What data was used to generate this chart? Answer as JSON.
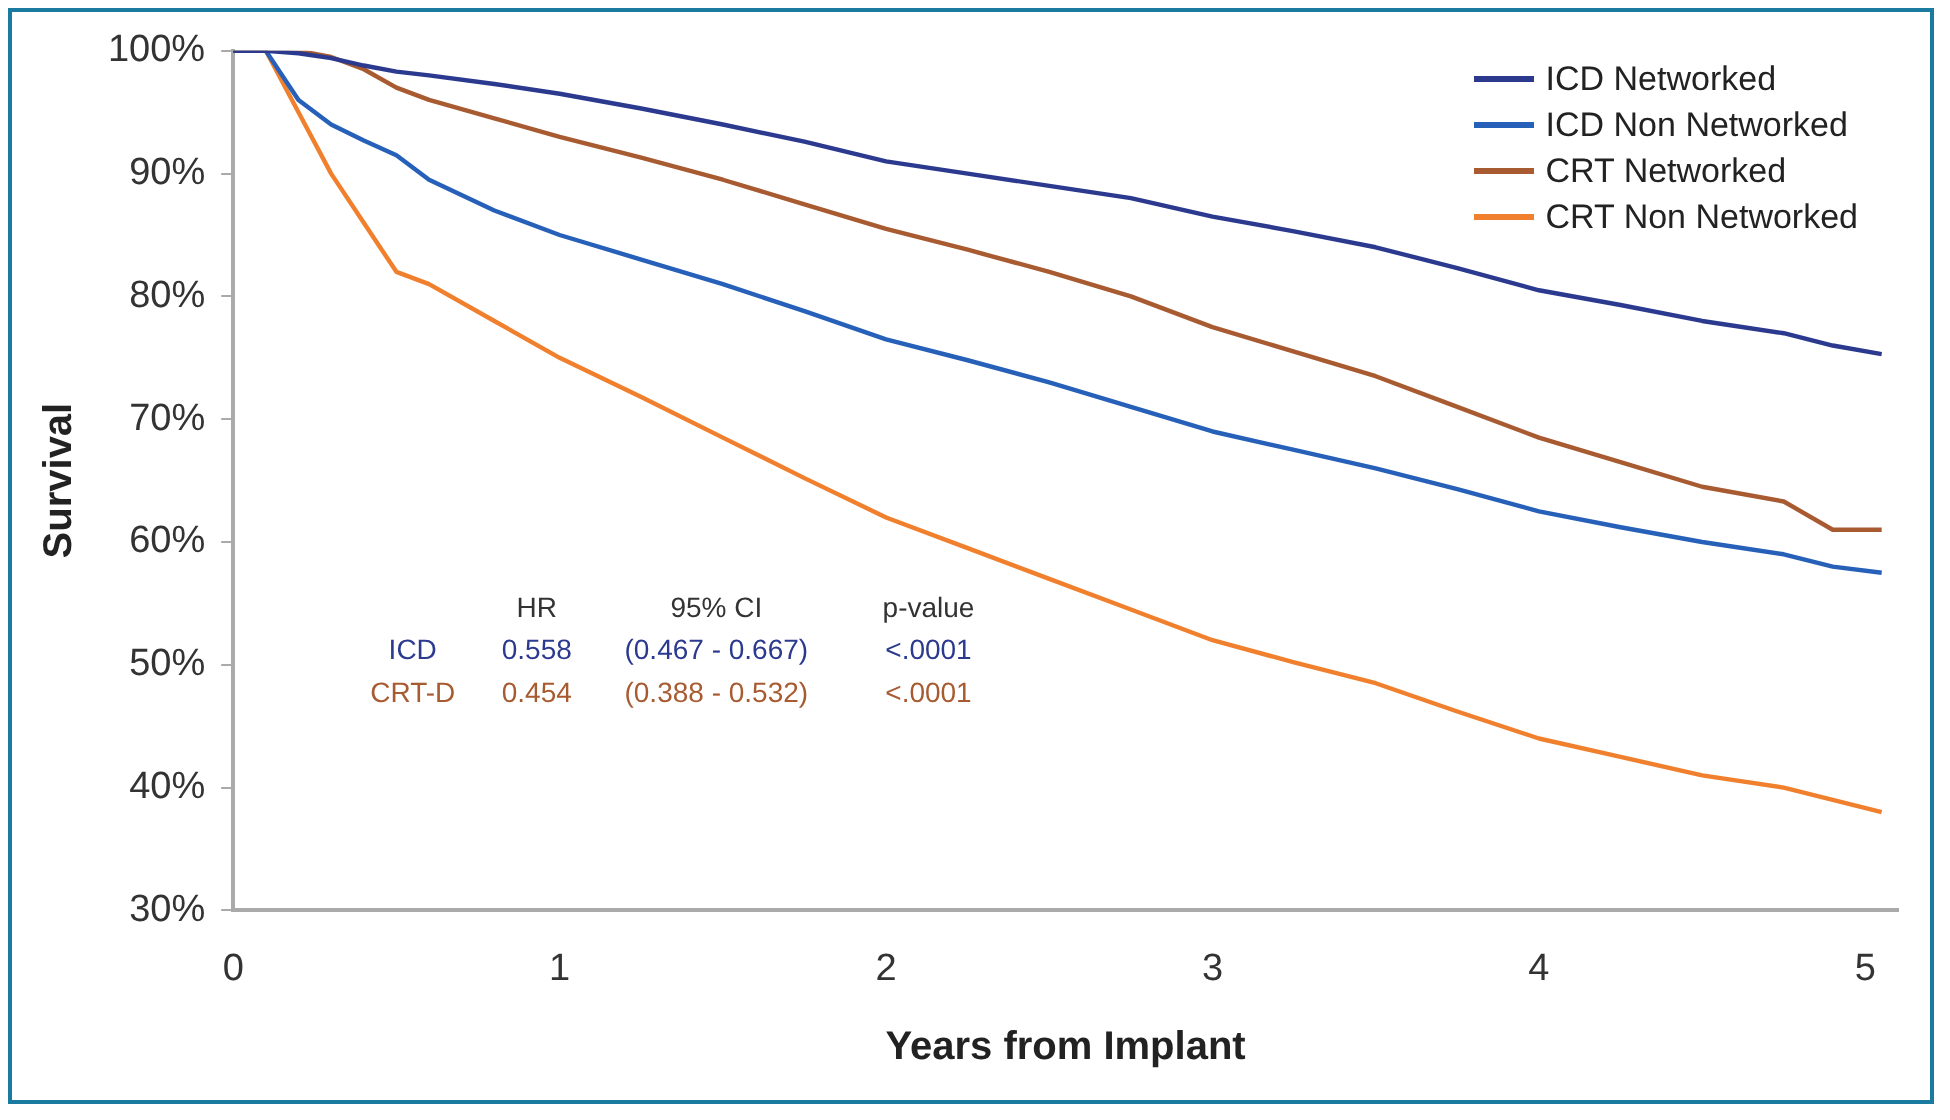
{
  "chart_data": {
    "type": "line",
    "xlabel": "Years from Implant",
    "ylabel": "Survival",
    "xlim": [
      0,
      5.1
    ],
    "xticks": [
      0,
      1,
      2,
      3,
      4,
      5
    ],
    "ylim": [
      30,
      100
    ],
    "yticks": [
      {
        "value": 30,
        "label": "30%"
      },
      {
        "value": 40,
        "label": "40%"
      },
      {
        "value": 50,
        "label": "50%"
      },
      {
        "value": 60,
        "label": "60%"
      },
      {
        "value": 70,
        "label": "70%"
      },
      {
        "value": 80,
        "label": "80%"
      },
      {
        "value": 90,
        "label": "90%"
      },
      {
        "value": 100,
        "label": "100%"
      }
    ],
    "grid": false,
    "legend": "top right",
    "marker": "none",
    "line_style": "solid",
    "x": [
      0,
      0.1,
      0.2,
      0.3,
      0.4,
      0.5,
      0.6,
      0.8,
      1,
      1.25,
      1.5,
      1.75,
      2,
      2.25,
      2.5,
      2.75,
      3,
      3.25,
      3.5,
      3.75,
      4,
      4.25,
      4.5,
      4.75,
      4.9,
      5.05
    ],
    "series": [
      {
        "name": "ICD Networked",
        "color": "#2b3a8f",
        "values": [
          100,
          100,
          99.8,
          99.4,
          98.8,
          98.3,
          98,
          97.3,
          96.5,
          95.3,
          94,
          92.6,
          91,
          90,
          89,
          88,
          86.5,
          85.3,
          84,
          82.3,
          80.5,
          79.3,
          78,
          77,
          76,
          75.3
        ]
      },
      {
        "name": "ICD Non Networked",
        "color": "#2660b8",
        "values": [
          100,
          100,
          96,
          94,
          92.7,
          91.5,
          89.5,
          87,
          85,
          83,
          81,
          78.8,
          76.5,
          74.8,
          73,
          71,
          69,
          67.5,
          66,
          64.3,
          62.5,
          61.2,
          60,
          59,
          58,
          57.5
        ]
      },
      {
        "name": "CRT Networked",
        "color": "#a85a30",
        "values": [
          100,
          100,
          100,
          99.5,
          98.5,
          97,
          96,
          94.5,
          93,
          91.3,
          89.5,
          87.5,
          85.5,
          83.8,
          82,
          80,
          77.5,
          75.5,
          73.5,
          71,
          68.5,
          66.5,
          64.5,
          63.3,
          61,
          61
        ]
      },
      {
        "name": "CRT Non Networked",
        "color": "#f0802e",
        "values": [
          100,
          100,
          95,
          90,
          86,
          82,
          81,
          78,
          75,
          71.8,
          68.5,
          65.2,
          62,
          59.5,
          57,
          54.5,
          52,
          50.2,
          48.5,
          46.2,
          44,
          42.5,
          41,
          40,
          39,
          38
        ]
      }
    ],
    "annotations": [
      "HR",
      "95% CI",
      "p-value",
      "ICD",
      "0.558",
      "(0.467 - 0.667)",
      "<.0001",
      "CRT-D",
      "0.454",
      "(0.388 - 0.532)",
      "<.0001"
    ]
  }
}
